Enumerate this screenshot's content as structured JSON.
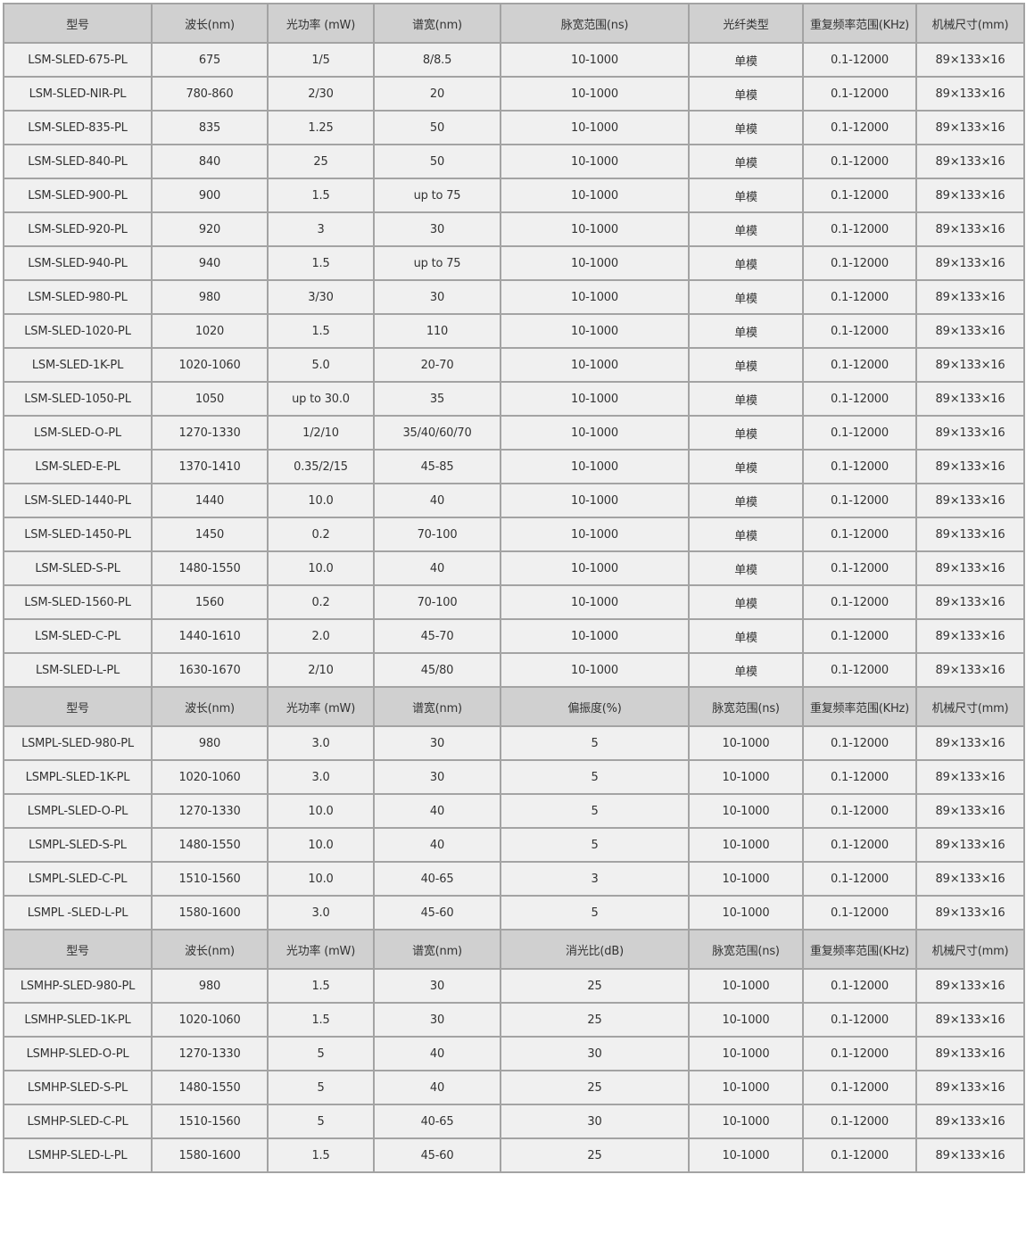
{
  "sections": [
    {
      "headers": [
        "型号",
        "波长(nm)",
        "光功率 (mW)",
        "谱宽(nm)",
        "脉宽范围(ns)",
        "光纤类型",
        "重复频率范围(KHz)",
        "机械尺寸(mm)"
      ],
      "rows": [
        [
          "LSM-SLED-675-PL",
          "675",
          "1/5",
          "8/8.5",
          "10-1000",
          "单模",
          "0.1-12000",
          "89×133×16"
        ],
        [
          "LSM-SLED-NIR-PL",
          "780-860",
          "2/30",
          "20",
          "10-1000",
          "单模",
          "0.1-12000",
          "89×133×16"
        ],
        [
          "LSM-SLED-835-PL",
          "835",
          "1.25",
          "50",
          "10-1000",
          "单模",
          "0.1-12000",
          "89×133×16"
        ],
        [
          "LSM-SLED-840-PL",
          "840",
          "25",
          "50",
          "10-1000",
          "单模",
          "0.1-12000",
          "89×133×16"
        ],
        [
          "LSM-SLED-900-PL",
          "900",
          "1.5",
          "up to 75",
          "10-1000",
          "单模",
          "0.1-12000",
          "89×133×16"
        ],
        [
          "LSM-SLED-920-PL",
          "920",
          "3",
          "30",
          "10-1000",
          "单模",
          "0.1-12000",
          "89×133×16"
        ],
        [
          "LSM-SLED-940-PL",
          "940",
          "1.5",
          "up to 75",
          "10-1000",
          "单模",
          "0.1-12000",
          "89×133×16"
        ],
        [
          "LSM-SLED-980-PL",
          "980",
          "3/30",
          "30",
          "10-1000",
          "单模",
          "0.1-12000",
          "89×133×16"
        ],
        [
          "LSM-SLED-1020-PL",
          "1020",
          "1.5",
          "110",
          "10-1000",
          "单模",
          "0.1-12000",
          "89×133×16"
        ],
        [
          "LSM-SLED-1K-PL",
          "1020-1060",
          "5.0",
          "20-70",
          "10-1000",
          "单模",
          "0.1-12000",
          "89×133×16"
        ],
        [
          "LSM-SLED-1050-PL",
          "1050",
          "up to 30.0",
          "35",
          "10-1000",
          "单模",
          "0.1-12000",
          "89×133×16"
        ],
        [
          "LSM-SLED-O-PL",
          "1270-1330",
          "1/2/10",
          "35/40/60/70",
          "10-1000",
          "单模",
          "0.1-12000",
          "89×133×16"
        ],
        [
          "LSM-SLED-E-PL",
          "1370-1410",
          "0.35/2/15",
          "45-85",
          "10-1000",
          "单模",
          "0.1-12000",
          "89×133×16"
        ],
        [
          "LSM-SLED-1440-PL",
          "1440",
          "10.0",
          "40",
          "10-1000",
          "单模",
          "0.1-12000",
          "89×133×16"
        ],
        [
          "LSM-SLED-1450-PL",
          "1450",
          "0.2",
          "70-100",
          "10-1000",
          "单模",
          "0.1-12000",
          "89×133×16"
        ],
        [
          "LSM-SLED-S-PL",
          "1480-1550",
          "10.0",
          "40",
          "10-1000",
          "单模",
          "0.1-12000",
          "89×133×16"
        ],
        [
          "LSM-SLED-1560-PL",
          "1560",
          "0.2",
          "70-100",
          "10-1000",
          "单模",
          "0.1-12000",
          "89×133×16"
        ],
        [
          "LSM-SLED-C-PL",
          "1440-1610",
          "2.0",
          "45-70",
          "10-1000",
          "单模",
          "0.1-12000",
          "89×133×16"
        ],
        [
          "LSM-SLED-L-PL",
          "1630-1670",
          "2/10",
          "45/80",
          "10-1000",
          "单模",
          "0.1-12000",
          "89×133×16"
        ]
      ]
    },
    {
      "headers": [
        "型号",
        "波长(nm)",
        "光功率 (mW)",
        "谱宽(nm)",
        "偏振度(%)",
        "脉宽范围(ns)",
        "重复频率范围(KHz)",
        "机械尺寸(mm)"
      ],
      "rows": [
        [
          "LSMPL-SLED-980-PL",
          "980",
          "3.0",
          "30",
          "5",
          "10-1000",
          "0.1-12000",
          "89×133×16"
        ],
        [
          "LSMPL-SLED-1K-PL",
          "1020-1060",
          "3.0",
          "30",
          "5",
          "10-1000",
          "0.1-12000",
          "89×133×16"
        ],
        [
          "LSMPL-SLED-O-PL",
          "1270-1330",
          "10.0",
          "40",
          "5",
          "10-1000",
          "0.1-12000",
          "89×133×16"
        ],
        [
          "LSMPL-SLED-S-PL",
          "1480-1550",
          "10.0",
          "40",
          "5",
          "10-1000",
          "0.1-12000",
          "89×133×16"
        ],
        [
          "LSMPL-SLED-C-PL",
          "1510-1560",
          "10.0",
          "40-65",
          "3",
          "10-1000",
          "0.1-12000",
          "89×133×16"
        ],
        [
          "LSMPL -SLED-L-PL",
          "1580-1600",
          "3.0",
          "45-60",
          "5",
          "10-1000",
          "0.1-12000",
          "89×133×16"
        ]
      ]
    },
    {
      "headers": [
        "型号",
        "波长(nm)",
        "光功率 (mW)",
        "谱宽(nm)",
        "消光比(dB)",
        "脉宽范围(ns)",
        "重复频率范围(KHz)",
        "机械尺寸(mm)"
      ],
      "rows": [
        [
          "LSMHP-SLED-980-PL",
          "980",
          "1.5",
          "30",
          "25",
          "10-1000",
          "0.1-12000",
          "89×133×16"
        ],
        [
          "LSMHP-SLED-1K-PL",
          "1020-1060",
          "1.5",
          "30",
          "25",
          "10-1000",
          "0.1-12000",
          "89×133×16"
        ],
        [
          "LSMHP-SLED-O-PL",
          "1270-1330",
          "5",
          "40",
          "30",
          "10-1000",
          "0.1-12000",
          "89×133×16"
        ],
        [
          "LSMHP-SLED-S-PL",
          "1480-1550",
          "5",
          "40",
          "25",
          "10-1000",
          "0.1-12000",
          "89×133×16"
        ],
        [
          "LSMHP-SLED-C-PL",
          "1510-1560",
          "5",
          "40-65",
          "30",
          "10-1000",
          "0.1-12000",
          "89×133×16"
        ],
        [
          "LSMHP-SLED-L-PL",
          "1580-1600",
          "1.5",
          "45-60",
          "25",
          "10-1000",
          "0.1-12000",
          "89×133×16"
        ]
      ]
    }
  ],
  "colors": {
    "header_bg": "#d0d0d0",
    "cell_bg": "#f0f0f0",
    "border": "#a3a3a3",
    "text": "#333333"
  }
}
